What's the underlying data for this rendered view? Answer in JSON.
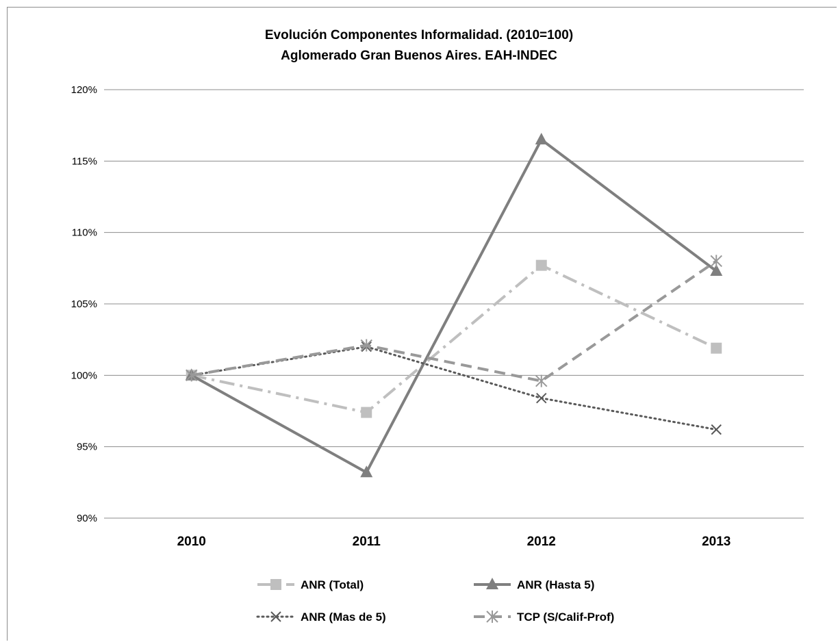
{
  "chart_data": {
    "type": "line",
    "title": "Evolución Componentes Informalidad.  (2010=100)",
    "subtitle": "Aglomerado Gran Buenos Aires. EAH-INDEC",
    "xlabel": "",
    "ylabel": "",
    "categories": [
      "2010",
      "2011",
      "2012",
      "2013"
    ],
    "ylim": [
      90,
      120
    ],
    "y_ticks": [
      90,
      95,
      100,
      105,
      110,
      115,
      120
    ],
    "y_tick_labels": [
      "90%",
      "95%",
      "100%",
      "105%",
      "110%",
      "115%",
      "120%"
    ],
    "grid": true,
    "legend_position": "bottom",
    "series": [
      {
        "name": "ANR (Total)",
        "values": [
          100,
          97.4,
          107.7,
          101.9
        ],
        "color": "#bfbfbf",
        "dash": "dashdot",
        "marker": "square"
      },
      {
        "name": "ANR (Hasta 5)",
        "values": [
          100,
          93.2,
          116.5,
          107.3
        ],
        "color": "#7f7f7f",
        "dash": "solid",
        "marker": "triangle"
      },
      {
        "name": "ANR (Mas de 5)",
        "values": [
          100,
          102.0,
          98.4,
          96.2
        ],
        "color": "#595959",
        "dash": "dot",
        "marker": "x"
      },
      {
        "name": "TCP (S/Calif-Prof)",
        "values": [
          100,
          102.1,
          99.6,
          108.0
        ],
        "color": "#999999",
        "dash": "dash",
        "marker": "star"
      }
    ]
  }
}
